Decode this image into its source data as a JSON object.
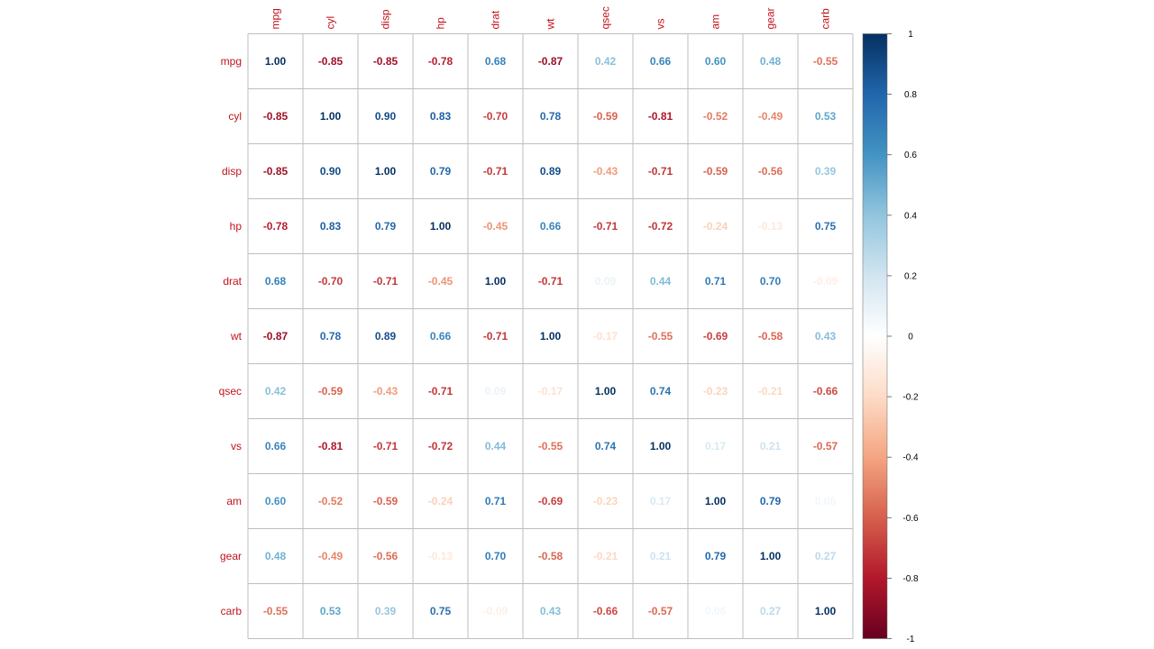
{
  "chart_data": {
    "type": "heatmap",
    "variables": [
      "mpg",
      "cyl",
      "disp",
      "hp",
      "drat",
      "wt",
      "qsec",
      "vs",
      "am",
      "gear",
      "carb"
    ],
    "matrix": [
      [
        1.0,
        -0.85,
        -0.85,
        -0.78,
        0.68,
        -0.87,
        0.42,
        0.66,
        0.6,
        0.48,
        -0.55
      ],
      [
        -0.85,
        1.0,
        0.9,
        0.83,
        -0.7,
        0.78,
        -0.59,
        -0.81,
        -0.52,
        -0.49,
        0.53
      ],
      [
        -0.85,
        0.9,
        1.0,
        0.79,
        -0.71,
        0.89,
        -0.43,
        -0.71,
        -0.59,
        -0.56,
        0.39
      ],
      [
        -0.78,
        0.83,
        0.79,
        1.0,
        -0.45,
        0.66,
        -0.71,
        -0.72,
        -0.24,
        -0.13,
        0.75
      ],
      [
        0.68,
        -0.7,
        -0.71,
        -0.45,
        1.0,
        -0.71,
        0.09,
        0.44,
        0.71,
        0.7,
        -0.09
      ],
      [
        -0.87,
        0.78,
        0.89,
        0.66,
        -0.71,
        1.0,
        -0.17,
        -0.55,
        -0.69,
        -0.58,
        0.43
      ],
      [
        0.42,
        -0.59,
        -0.43,
        -0.71,
        0.09,
        -0.17,
        1.0,
        0.74,
        -0.23,
        -0.21,
        -0.66
      ],
      [
        0.66,
        -0.81,
        -0.71,
        -0.72,
        0.44,
        -0.55,
        0.74,
        1.0,
        0.17,
        0.21,
        -0.57
      ],
      [
        0.6,
        -0.52,
        -0.59,
        -0.24,
        0.71,
        -0.69,
        -0.23,
        0.17,
        1.0,
        0.79,
        0.06
      ],
      [
        0.48,
        -0.49,
        -0.56,
        -0.13,
        0.7,
        -0.58,
        -0.21,
        0.21,
        0.79,
        1.0,
        0.27
      ],
      [
        -0.55,
        0.53,
        0.39,
        0.75,
        -0.09,
        0.43,
        -0.66,
        -0.57,
        0.06,
        0.27,
        1.0
      ]
    ],
    "value_format": "2 decimals",
    "color_scale": {
      "min": -1,
      "max": 1,
      "stops": [
        "#67001F",
        "#B2182B",
        "#D6604D",
        "#F4A582",
        "#FDDBC7",
        "#FFFFFF",
        "#D1E5F0",
        "#92C5DE",
        "#4393C3",
        "#2166AC",
        "#053061"
      ],
      "ticks": [
        "1",
        "0.8",
        "0.6",
        "0.4",
        "0.2",
        "0",
        "-0.2",
        "-0.4",
        "-0.6",
        "-0.8",
        "-1"
      ]
    },
    "label_color": "#C0141C",
    "grid_color": "#BEBEBE",
    "grid": true,
    "legend_placement": "right"
  }
}
